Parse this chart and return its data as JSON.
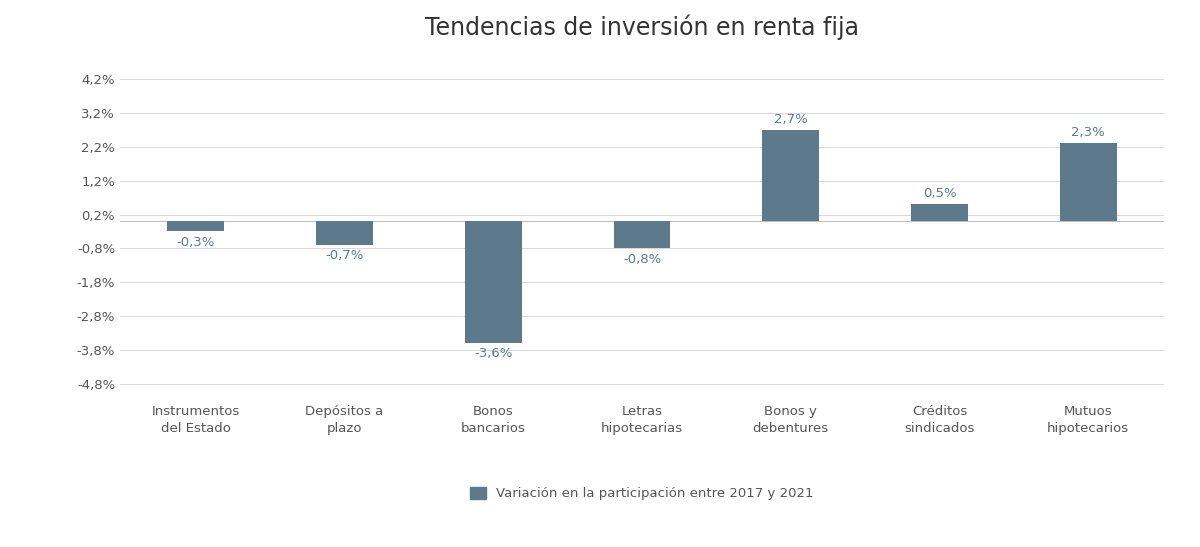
{
  "title": "Tendencias de inversión en renta fija",
  "categories": [
    "Instrumentos\ndel Estado",
    "Depósitos a\nplazo",
    "Bonos\nbancarios",
    "Letras\nhipotecarias",
    "Bonos y\ndebentures",
    "Créditos\nsindicados",
    "Mutuos\nhipotecarios"
  ],
  "values": [
    -0.3,
    -0.7,
    -3.6,
    -0.8,
    2.7,
    0.5,
    2.3
  ],
  "bar_color": "#5d7a8c",
  "background_color": "#ffffff",
  "legend_label": "Variación en la participación entre 2017 y 2021",
  "ylim_min": -5.1,
  "ylim_max": 4.6,
  "yticks": [
    -4.8,
    -3.8,
    -2.8,
    -1.8,
    -0.8,
    0.2,
    1.2,
    2.2,
    3.2,
    4.2
  ],
  "ytick_labels": [
    "-4,8%",
    "-3,8%",
    "-2,8%",
    "-1,8%",
    "-0,8%",
    "0,2%",
    "1,2%",
    "2,2%",
    "3,2%",
    "4,2%"
  ],
  "data_labels": [
    "-0,3%",
    "-0,7%",
    "-3,6%",
    "-0,8%",
    "2,7%",
    "0,5%",
    "2,3%"
  ],
  "title_fontsize": 17,
  "tick_fontsize": 9.5,
  "xlabel_fontsize": 9.5,
  "legend_fontsize": 9.5,
  "data_label_fontsize": 9.5,
  "bar_width": 0.38,
  "grid_color": "#d8d8d8",
  "text_color": "#555555",
  "bar_label_color": "#5d7a8c"
}
